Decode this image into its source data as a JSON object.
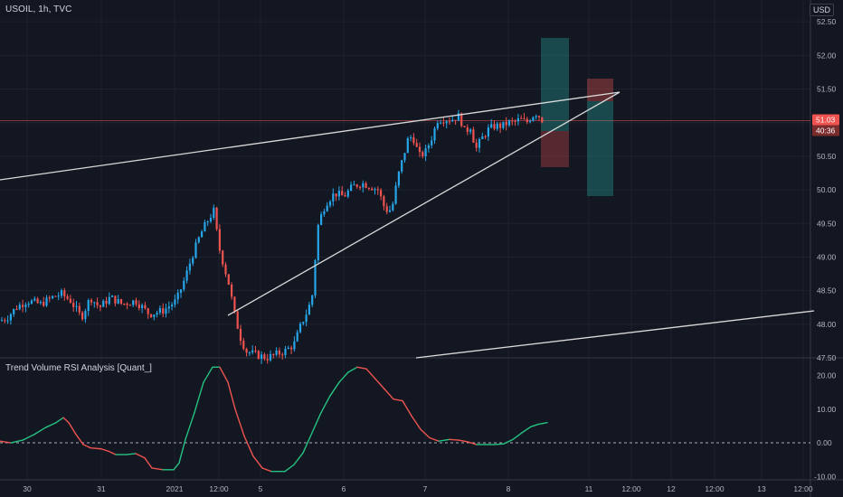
{
  "header": {
    "symbol_line": "USOIL, 1h, TVC"
  },
  "currency_label": "USD",
  "indicator_name": "Trend Volume RSI Analysis [Quant_]",
  "colors": {
    "background": "#131722",
    "up": "#26a6e8",
    "down": "#ef5350",
    "grid": "#1e222d",
    "price_line": "#ef5350",
    "tag_bg": "#ef5350",
    "rsi_up": "#26c281",
    "rsi_down": "#ef5350",
    "trendline": "#e0e0e0"
  },
  "tags": {
    "last_price": "51.03",
    "countdown": "40:36"
  },
  "chart_data": [
    {
      "type": "candlestick",
      "title": "",
      "x_tick_labels": [
        "30",
        "31",
        "2021",
        "12:00",
        "5",
        "6",
        "7",
        "8",
        "11",
        "12:00",
        "12",
        "12:00",
        "13",
        "12:00"
      ],
      "y_tick_labels": [
        "52.50",
        "52.00",
        "51.50",
        "51.00",
        "50.50",
        "50.00",
        "49.50",
        "49.00",
        "48.50",
        "48.00",
        "47.50"
      ],
      "ylim": [
        47.5,
        52.65
      ],
      "last_price": 51.03,
      "close_path": [
        [
          0,
          48.05
        ],
        [
          8,
          48.1
        ],
        [
          18,
          48.25
        ],
        [
          30,
          48.35
        ],
        [
          45,
          48.3
        ],
        [
          58,
          48.4
        ],
        [
          68,
          48.45
        ],
        [
          78,
          48.35
        ],
        [
          90,
          48.1
        ],
        [
          100,
          48.4
        ],
        [
          110,
          48.25
        ],
        [
          122,
          48.4
        ],
        [
          135,
          48.3
        ],
        [
          150,
          48.35
        ],
        [
          165,
          48.15
        ],
        [
          180,
          48.2
        ],
        [
          195,
          48.35
        ],
        [
          205,
          48.7
        ],
        [
          212,
          49.0
        ],
        [
          222,
          49.35
        ],
        [
          230,
          49.55
        ],
        [
          237,
          49.7
        ],
        [
          241,
          49.2
        ],
        [
          247,
          48.9
        ],
        [
          253,
          48.6
        ],
        [
          260,
          48.1
        ],
        [
          266,
          47.8
        ],
        [
          272,
          47.6
        ],
        [
          282,
          47.55
        ],
        [
          295,
          47.5
        ],
        [
          305,
          47.55
        ],
        [
          315,
          47.6
        ],
        [
          325,
          47.7
        ],
        [
          333,
          48.0
        ],
        [
          340,
          48.2
        ],
        [
          345,
          48.4
        ],
        [
          348,
          48.9
        ],
        [
          352,
          49.5
        ],
        [
          360,
          49.8
        ],
        [
          370,
          49.95
        ],
        [
          380,
          49.9
        ],
        [
          390,
          50.05
        ],
        [
          400,
          50.1
        ],
        [
          410,
          50.05
        ],
        [
          418,
          50.0
        ],
        [
          426,
          49.7
        ],
        [
          433,
          49.7
        ],
        [
          440,
          50.2
        ],
        [
          446,
          50.5
        ],
        [
          452,
          50.8
        ],
        [
          458,
          50.75
        ],
        [
          463,
          50.5
        ],
        [
          470,
          50.55
        ],
        [
          478,
          50.8
        ],
        [
          484,
          51.05
        ],
        [
          492,
          51.05
        ],
        [
          500,
          51.05
        ],
        [
          508,
          51.1
        ],
        [
          514,
          50.85
        ],
        [
          520,
          50.95
        ],
        [
          526,
          50.6
        ],
        [
          532,
          50.75
        ],
        [
          540,
          50.9
        ],
        [
          547,
          50.95
        ],
        [
          555,
          50.95
        ],
        [
          562,
          51.0
        ],
        [
          568,
          51.0
        ],
        [
          575,
          51.05
        ],
        [
          582,
          51.0
        ],
        [
          588,
          51.1
        ],
        [
          594,
          51.15
        ],
        [
          598,
          51.05
        ],
        [
          602,
          51.03
        ]
      ]
    },
    {
      "type": "line",
      "title": "Trend Volume RSI Analysis [Quant_]",
      "y_tick_labels": [
        "20.00",
        "10.00",
        "0.00",
        "-10.00"
      ],
      "ylim": [
        -11,
        25
      ],
      "points": [
        [
          0,
          0.5
        ],
        [
          12,
          0
        ],
        [
          25,
          0.8
        ],
        [
          38,
          2.5
        ],
        [
          50,
          4.5
        ],
        [
          62,
          6
        ],
        [
          70,
          7.5
        ],
        [
          76,
          6
        ],
        [
          84,
          2.5
        ],
        [
          92,
          -0.5
        ],
        [
          100,
          -1.5
        ],
        [
          112,
          -1.8
        ],
        [
          120,
          -2.5
        ],
        [
          128,
          -3.5
        ],
        [
          140,
          -3.5
        ],
        [
          150,
          -3.2
        ],
        [
          160,
          -4.5
        ],
        [
          168,
          -7.5
        ],
        [
          180,
          -8
        ],
        [
          192,
          -8
        ],
        [
          198,
          -6
        ],
        [
          205,
          1
        ],
        [
          215,
          9
        ],
        [
          225,
          18
        ],
        [
          235,
          22.5
        ],
        [
          243,
          22.5
        ],
        [
          252,
          18
        ],
        [
          260,
          10
        ],
        [
          270,
          2
        ],
        [
          280,
          -4
        ],
        [
          290,
          -7.5
        ],
        [
          300,
          -8.5
        ],
        [
          315,
          -8.5
        ],
        [
          325,
          -6.5
        ],
        [
          335,
          -3
        ],
        [
          345,
          3
        ],
        [
          355,
          9
        ],
        [
          365,
          14
        ],
        [
          375,
          18
        ],
        [
          385,
          21
        ],
        [
          395,
          22.5
        ],
        [
          405,
          22
        ],
        [
          415,
          19
        ],
        [
          425,
          16
        ],
        [
          435,
          13
        ],
        [
          445,
          12.5
        ],
        [
          455,
          8
        ],
        [
          465,
          4
        ],
        [
          475,
          1.5
        ],
        [
          485,
          0.5
        ],
        [
          497,
          1
        ],
        [
          507,
          0.8
        ],
        [
          517,
          0.3
        ],
        [
          527,
          -0.5
        ],
        [
          537,
          -0.5
        ],
        [
          547,
          -0.5
        ],
        [
          557,
          -0.3
        ],
        [
          567,
          1
        ],
        [
          577,
          3
        ],
        [
          587,
          4.8
        ],
        [
          595,
          5.5
        ],
        [
          605,
          6
        ]
      ]
    }
  ]
}
